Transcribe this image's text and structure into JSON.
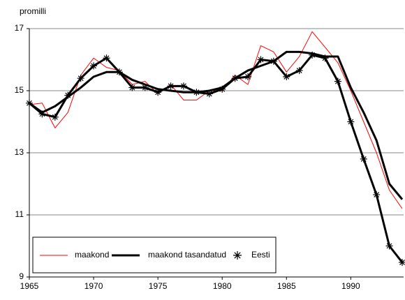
{
  "chart_data": {
    "type": "line",
    "ylabel": "promilli",
    "x": [
      1965,
      1966,
      1967,
      1968,
      1969,
      1970,
      1971,
      1972,
      1973,
      1974,
      1975,
      1976,
      1977,
      1978,
      1979,
      1980,
      1981,
      1982,
      1983,
      1984,
      1985,
      1986,
      1987,
      1988,
      1989,
      1990,
      1991,
      1992,
      1993,
      1994
    ],
    "series": [
      {
        "name": "maakond",
        "color": "#ff0000",
        "style": "thin",
        "values": [
          14.55,
          14.6,
          13.8,
          14.3,
          15.5,
          16.05,
          15.75,
          15.65,
          15.2,
          15.3,
          14.9,
          15.2,
          14.7,
          14.7,
          15.0,
          15.0,
          15.5,
          15.2,
          16.45,
          16.25,
          15.6,
          16.1,
          16.9,
          16.4,
          15.9,
          15.0,
          14.0,
          13.0,
          11.8,
          11.2
        ]
      },
      {
        "name": "maakond tasandatud",
        "color": "#000000",
        "style": "thick",
        "values": [
          14.6,
          14.3,
          14.5,
          14.8,
          15.1,
          15.45,
          15.6,
          15.6,
          15.35,
          15.2,
          15.05,
          15.0,
          14.95,
          14.95,
          15.0,
          15.1,
          15.4,
          15.65,
          15.8,
          15.95,
          16.25,
          16.25,
          16.2,
          16.1,
          16.1,
          15.1,
          14.3,
          13.4,
          12.0,
          11.5
        ]
      },
      {
        "name": "Eesti",
        "color": "#000000",
        "style": "star",
        "values": [
          14.6,
          14.25,
          14.15,
          14.85,
          15.4,
          15.8,
          16.05,
          15.6,
          15.1,
          15.1,
          14.95,
          15.15,
          15.15,
          14.95,
          14.9,
          15.05,
          15.4,
          15.45,
          16.0,
          15.95,
          15.45,
          15.65,
          16.15,
          16.05,
          15.3,
          14.0,
          12.8,
          11.65,
          10.0,
          9.47
        ]
      }
    ],
    "xlim": [
      1965,
      1994
    ],
    "xticks": [
      1965,
      1970,
      1975,
      1980,
      1985,
      1990
    ],
    "ylim": [
      9,
      17
    ],
    "yticks": [
      9,
      11,
      13,
      15,
      17
    ],
    "grid": true,
    "legend": "lower left"
  }
}
